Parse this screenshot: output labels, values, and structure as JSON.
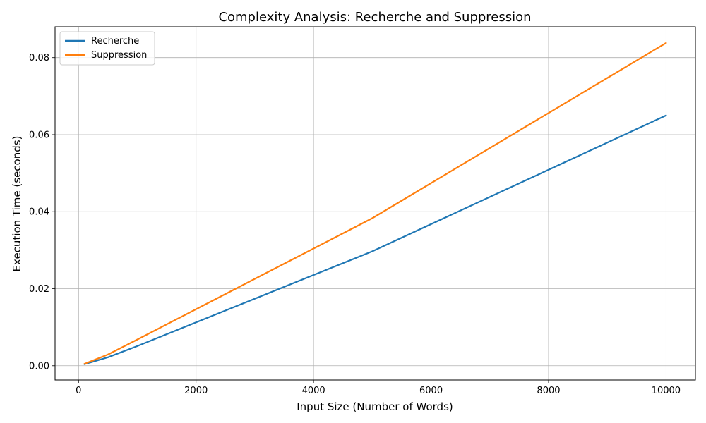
{
  "chart_data": {
    "type": "line",
    "title": "Complexity Analysis: Recherche and Suppression",
    "xlabel": "Input Size (Number of Words)",
    "ylabel": "Execution Time (seconds)",
    "xlim": [
      -400,
      10500
    ],
    "ylim": [
      -0.0037,
      0.088
    ],
    "xticks": [
      0,
      2000,
      4000,
      6000,
      8000,
      10000
    ],
    "xtick_labels": [
      "0",
      "2000",
      "4000",
      "6000",
      "8000",
      "10000"
    ],
    "yticks": [
      0.0,
      0.02,
      0.04,
      0.06,
      0.08
    ],
    "ytick_labels": [
      "0.00",
      "0.02",
      "0.04",
      "0.06",
      "0.08"
    ],
    "grid": true,
    "legend_position": "upper-left",
    "x": [
      100,
      500,
      1000,
      5000,
      10000
    ],
    "series": [
      {
        "name": "Recherche",
        "color": "#1f77b4",
        "values": [
          0.0004,
          0.0022,
          0.0051,
          0.0297,
          0.065
        ]
      },
      {
        "name": "Suppression",
        "color": "#ff7f0e",
        "values": [
          0.0005,
          0.0029,
          0.0068,
          0.0383,
          0.0838
        ]
      }
    ]
  }
}
